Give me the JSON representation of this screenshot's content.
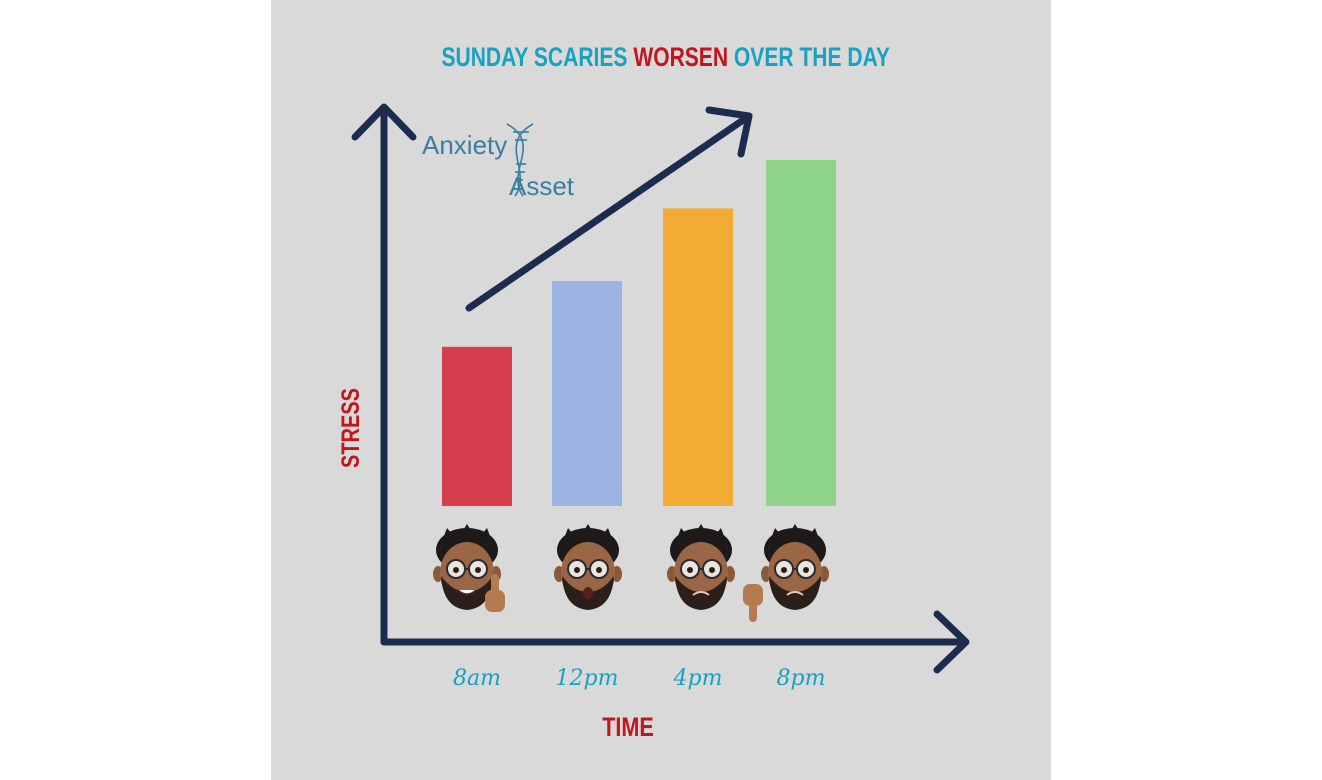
{
  "title": {
    "part1": "SUNDAY SCARIES ",
    "part2": "WORSEN",
    "part3": " OVER THE DAY"
  },
  "logo": {
    "line1": "Anxiety",
    "line2": "Asset",
    "icon": "dna-helix-icon"
  },
  "colors": {
    "background": "#d9d9d9",
    "title_teal": "#17a2c2",
    "title_red": "#c0161c",
    "axis": "#1d2b4f",
    "axis_label": "#c0161c",
    "tick_label": "#17a2c2",
    "logo": "#3a7fa0"
  },
  "faces": [
    {
      "icon": "smiling-face-thumbs-up-icon"
    },
    {
      "icon": "surprised-face-icon"
    },
    {
      "icon": "worried-face-icon"
    },
    {
      "icon": "sad-face-thumbs-down-icon"
    }
  ],
  "chart_data": {
    "type": "bar",
    "title": "SUNDAY SCARIES WORSEN OVER THE DAY",
    "xlabel": "TIME",
    "ylabel": "STRESS",
    "categories": [
      "8am",
      "12pm",
      "4pm",
      "8pm"
    ],
    "values": [
      46,
      65,
      86,
      100
    ],
    "bar_colors": [
      "#d63e4d",
      "#9db3e2",
      "#f2ac33",
      "#8fd48b"
    ],
    "ylim": [
      0,
      100
    ],
    "grid": false,
    "trend_arrow": true
  }
}
